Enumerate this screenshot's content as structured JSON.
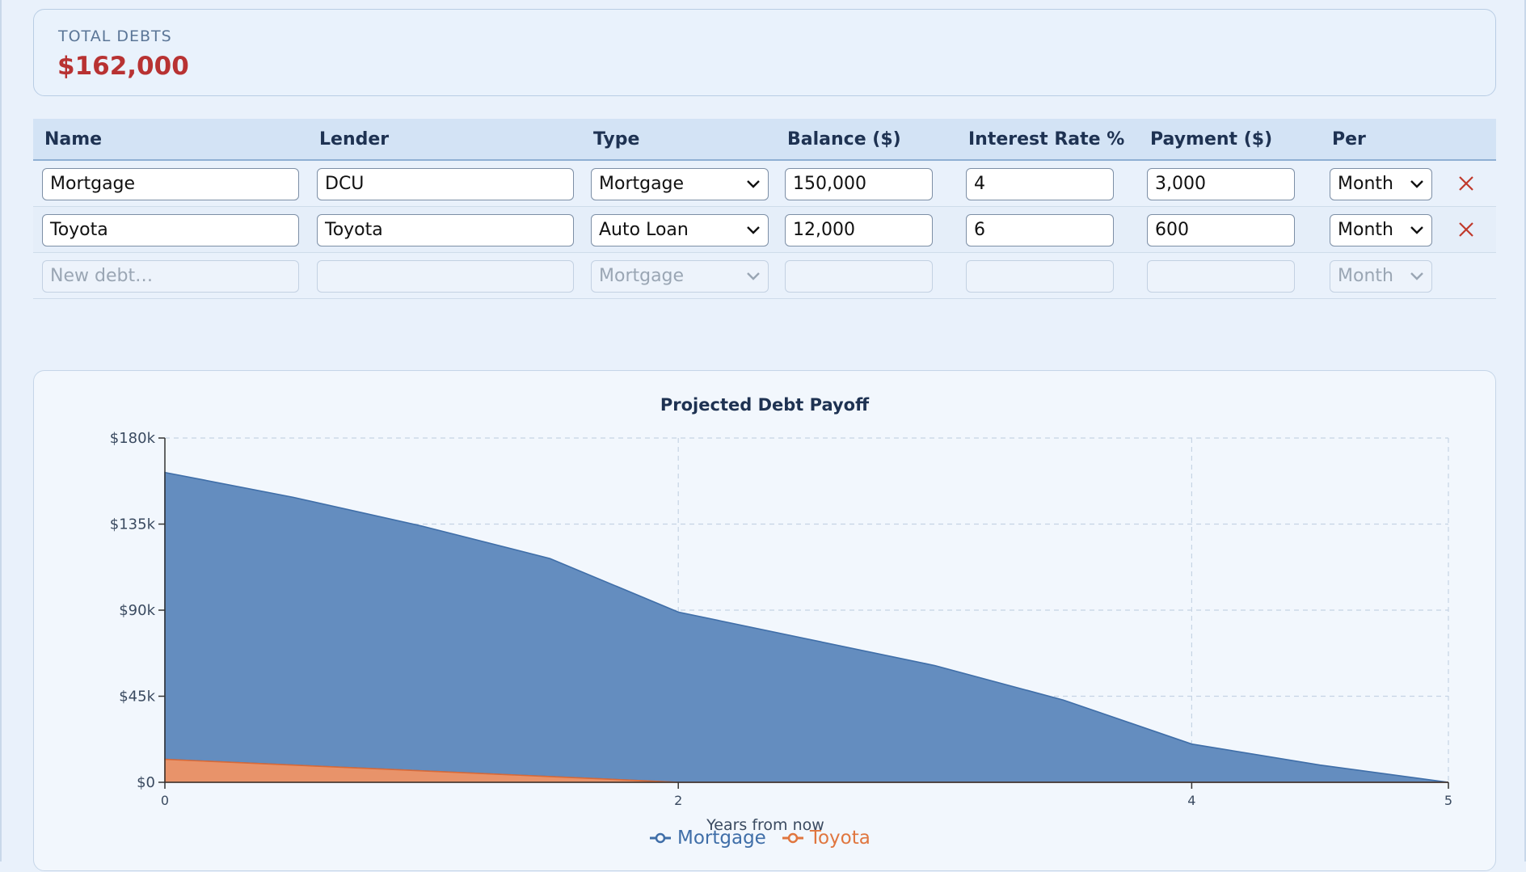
{
  "summary": {
    "label": "TOTAL DEBTS",
    "value": "$162,000"
  },
  "table": {
    "headers": {
      "name": "Name",
      "lender": "Lender",
      "type": "Type",
      "balance": "Balance ($)",
      "rate": "Interest Rate %",
      "payment": "Payment ($)",
      "per": "Per"
    },
    "rows": [
      {
        "name": "Mortgage",
        "lender": "DCU",
        "type": "Mortgage",
        "balance": "150,000",
        "rate": "4",
        "payment": "3,000",
        "per": "Month"
      },
      {
        "name": "Toyota",
        "lender": "Toyota",
        "type": "Auto Loan",
        "balance": "12,000",
        "rate": "6",
        "payment": "600",
        "per": "Month"
      }
    ],
    "new_row": {
      "name_placeholder": "New debt…",
      "type": "Mortgage",
      "per": "Month"
    },
    "delete_icon": "close-icon"
  },
  "chart_data": {
    "type": "area",
    "title": "Projected Debt Payoff",
    "xlabel": "Years from now",
    "ylabel": "",
    "xlim": [
      0,
      5
    ],
    "ylim": [
      0,
      180000
    ],
    "x_ticks": [
      0,
      2,
      4,
      5
    ],
    "y_ticks": [
      "$0",
      "$45k",
      "$90k",
      "$135k",
      "$180k"
    ],
    "y_tick_values": [
      0,
      45000,
      90000,
      135000,
      180000
    ],
    "stacked": true,
    "grid": true,
    "legend_placement": "bottom",
    "series": [
      {
        "name": "Mortgage",
        "color": "#4e7db8",
        "x": [
          0,
          0.5,
          1,
          1.5,
          2,
          2.5,
          3,
          3.5,
          4,
          4.5,
          5
        ],
        "values": [
          150000,
          140000,
          128000,
          114000,
          89000,
          75000,
          61000,
          43000,
          20000,
          9000,
          0
        ]
      },
      {
        "name": "Toyota",
        "color": "#e0763f",
        "x": [
          0,
          0.5,
          1,
          1.5,
          2,
          2.5,
          3,
          3.5,
          4,
          4.5,
          5
        ],
        "values": [
          12000,
          9000,
          6000,
          3000,
          0,
          0,
          0,
          0,
          0,
          0,
          0
        ]
      }
    ]
  }
}
